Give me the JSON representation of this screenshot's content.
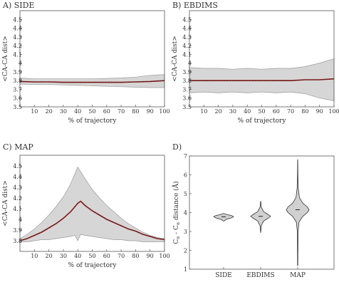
{
  "chart_data": [
    {
      "type": "line",
      "panel_label": "A) SIDE",
      "xlabel": "% of trajectory",
      "ylabel": "<CA-CA dist>",
      "xlim": [
        0,
        100
      ],
      "ylim": [
        3.5,
        4.6
      ],
      "x_ticks": [
        "10",
        "20",
        "30",
        "40",
        "50",
        "60",
        "70",
        "80",
        "90",
        "100"
      ],
      "y_ticks": [
        "3.5",
        "3.6",
        "3.7",
        "3.8",
        "3.9",
        "4",
        "4.1",
        "4.2",
        "4.3",
        "4.4",
        "4.5"
      ],
      "series": [
        {
          "role": "mean",
          "color": "#8b1a1a",
          "x": [
            0,
            10,
            20,
            30,
            40,
            50,
            60,
            70,
            80,
            90,
            100
          ],
          "y": [
            3.79,
            3.785,
            3.785,
            3.78,
            3.78,
            3.78,
            3.78,
            3.78,
            3.785,
            3.79,
            3.8
          ]
        },
        {
          "role": "upper",
          "color": "#aaaaaa",
          "x": [
            0,
            10,
            20,
            30,
            40,
            50,
            60,
            70,
            80,
            90,
            100
          ],
          "y": [
            3.83,
            3.82,
            3.82,
            3.82,
            3.82,
            3.82,
            3.825,
            3.83,
            3.84,
            3.86,
            3.87
          ]
        },
        {
          "role": "lower",
          "color": "#aaaaaa",
          "x": [
            0,
            10,
            20,
            30,
            40,
            50,
            60,
            70,
            80,
            90,
            100
          ],
          "y": [
            3.76,
            3.755,
            3.755,
            3.75,
            3.745,
            3.74,
            3.735,
            3.73,
            3.725,
            3.72,
            3.72
          ]
        }
      ]
    },
    {
      "type": "line",
      "panel_label": "B) EBDIMS",
      "xlabel": "% of trajectory",
      "ylabel": "<CA-CA dist>",
      "xlim": [
        0,
        100
      ],
      "ylim": [
        3.5,
        4.6
      ],
      "x_ticks": [
        "10",
        "20",
        "30",
        "40",
        "50",
        "60",
        "70",
        "80",
        "90",
        "100"
      ],
      "y_ticks": [
        "3.5",
        "3.6",
        "3.7",
        "3.8",
        "3.9",
        "4",
        "4.1",
        "4.2",
        "4.3",
        "4.4",
        "4.5"
      ],
      "series": [
        {
          "role": "mean",
          "color": "#8b1a1a",
          "x": [
            0,
            10,
            20,
            30,
            40,
            50,
            60,
            70,
            80,
            90,
            100
          ],
          "y": [
            3.8,
            3.8,
            3.8,
            3.8,
            3.8,
            3.8,
            3.8,
            3.8,
            3.81,
            3.81,
            3.82
          ]
        },
        {
          "role": "upper",
          "color": "#aaaaaa",
          "x": [
            0,
            10,
            20,
            30,
            40,
            50,
            60,
            70,
            80,
            90,
            100
          ],
          "y": [
            3.95,
            3.94,
            3.94,
            3.93,
            3.94,
            3.93,
            3.94,
            3.94,
            3.96,
            4.0,
            4.05
          ]
        },
        {
          "role": "lower",
          "color": "#aaaaaa",
          "x": [
            0,
            10,
            20,
            30,
            40,
            50,
            60,
            70,
            80,
            90,
            100
          ],
          "y": [
            3.66,
            3.67,
            3.66,
            3.67,
            3.66,
            3.67,
            3.66,
            3.67,
            3.65,
            3.6,
            3.57
          ]
        }
      ]
    },
    {
      "type": "line",
      "panel_label": "C) MAP",
      "xlabel": "% of trajectory",
      "ylabel": "<CA-CA dist>",
      "xlim": [
        0,
        100
      ],
      "ylim": [
        3.7,
        4.6
      ],
      "x_ticks": [
        "10",
        "20",
        "30",
        "40",
        "50",
        "60",
        "70",
        "80",
        "90",
        "100"
      ],
      "y_ticks": [
        "3.8",
        "3.9",
        "4",
        "4.1",
        "4.2",
        "4.3",
        "4.4",
        "4.5"
      ],
      "series": [
        {
          "role": "mean",
          "color": "#8b1a1a",
          "x": [
            0,
            5,
            10,
            15,
            20,
            25,
            30,
            35,
            40,
            42,
            45,
            50,
            55,
            60,
            65,
            70,
            75,
            80,
            85,
            90,
            95,
            100
          ],
          "y": [
            3.8,
            3.82,
            3.85,
            3.88,
            3.92,
            3.96,
            4.01,
            4.07,
            4.15,
            4.17,
            4.13,
            4.08,
            4.04,
            4.0,
            3.97,
            3.94,
            3.91,
            3.89,
            3.86,
            3.84,
            3.82,
            3.81
          ]
        },
        {
          "role": "upper",
          "color": "#aaaaaa",
          "x": [
            0,
            5,
            10,
            15,
            20,
            25,
            30,
            35,
            40,
            45,
            50,
            55,
            60,
            65,
            70,
            75,
            80,
            85,
            90,
            95,
            100
          ],
          "y": [
            3.82,
            3.86,
            3.91,
            3.97,
            4.04,
            4.12,
            4.21,
            4.33,
            4.49,
            4.38,
            4.28,
            4.2,
            4.13,
            4.07,
            4.01,
            3.96,
            3.92,
            3.88,
            3.85,
            3.83,
            3.82
          ]
        },
        {
          "role": "lower",
          "color": "#aaaaaa",
          "x": [
            0,
            5,
            10,
            15,
            20,
            25,
            30,
            35,
            38,
            40,
            42,
            45,
            50,
            55,
            60,
            65,
            70,
            75,
            80,
            85,
            90,
            95,
            100
          ],
          "y": [
            3.79,
            3.79,
            3.8,
            3.81,
            3.81,
            3.82,
            3.83,
            3.84,
            3.85,
            3.8,
            3.86,
            3.85,
            3.84,
            3.83,
            3.82,
            3.81,
            3.81,
            3.8,
            3.8,
            3.79,
            3.79,
            3.79,
            3.79
          ]
        }
      ]
    },
    {
      "type": "violin",
      "panel_label": "D)",
      "ylabel_parts": [
        "C",
        "α",
        " - C",
        "α",
        "  distance (Å)"
      ],
      "ylim": [
        1,
        7
      ],
      "y_ticks": [
        "1",
        "2",
        "3",
        "4",
        "5",
        "6",
        "7"
      ],
      "categories": [
        "SIDE",
        "EBDIMS",
        "MAP"
      ],
      "distributions": [
        {
          "name": "SIDE",
          "median": 3.78,
          "min": 3.55,
          "max": 3.95,
          "profile": [
            [
              3.55,
              0.02
            ],
            [
              3.65,
              0.3
            ],
            [
              3.72,
              0.8
            ],
            [
              3.78,
              1.0
            ],
            [
              3.84,
              0.8
            ],
            [
              3.9,
              0.3
            ],
            [
              3.95,
              0.02
            ]
          ]
        },
        {
          "name": "EBDIMS",
          "median": 3.8,
          "min": 2.95,
          "max": 4.6,
          "profile": [
            [
              2.95,
              0.01
            ],
            [
              3.3,
              0.06
            ],
            [
              3.55,
              0.3
            ],
            [
              3.7,
              0.75
            ],
            [
              3.8,
              1.0
            ],
            [
              3.9,
              0.75
            ],
            [
              4.05,
              0.3
            ],
            [
              4.3,
              0.06
            ],
            [
              4.6,
              0.01
            ]
          ]
        },
        {
          "name": "MAP",
          "median": 4.15,
          "min": 1.2,
          "max": 6.8,
          "profile": [
            [
              1.2,
              0.01
            ],
            [
              3.0,
              0.03
            ],
            [
              3.5,
              0.12
            ],
            [
              3.8,
              0.45
            ],
            [
              4.0,
              0.85
            ],
            [
              4.15,
              1.0
            ],
            [
              4.3,
              0.85
            ],
            [
              4.5,
              0.45
            ],
            [
              4.8,
              0.15
            ],
            [
              5.3,
              0.05
            ],
            [
              6.0,
              0.02
            ],
            [
              6.8,
              0.005
            ]
          ]
        }
      ]
    }
  ]
}
